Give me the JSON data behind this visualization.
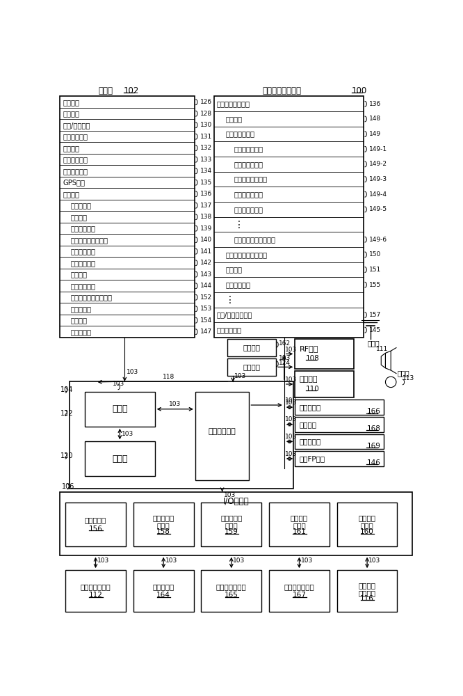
{
  "bg_color": "#ffffff",
  "title_left": "存储器",
  "title_left_ref": "102",
  "title_right": "便携式多功能设备",
  "title_right_ref": "100",
  "left_items": [
    [
      "操作系统",
      "126",
      0
    ],
    [
      "通信模块",
      "128",
      0
    ],
    [
      "接触/运动模块",
      "130",
      0
    ],
    [
      "指纹分析模块",
      "131",
      0
    ],
    [
      "图形模块",
      "132",
      0
    ],
    [
      "触觉反馈模块",
      "133",
      0
    ],
    [
      "文本输入模块",
      "134",
      0
    ],
    [
      "GPS模块",
      "135",
      0
    ],
    [
      "应用程序",
      "136",
      0
    ],
    [
      "联系人模块",
      "137",
      1
    ],
    [
      "电话模块",
      "138",
      1
    ],
    [
      "视频会议模块",
      "139",
      1
    ],
    [
      "电子邮件客户端模块",
      "140",
      1
    ],
    [
      "即时消息模块",
      "141",
      1
    ],
    [
      "健身支持模块",
      "142",
      1
    ],
    [
      "相机模块",
      "143",
      1
    ],
    [
      "图像管理模块",
      "144",
      1
    ],
    [
      "视频和音乐播放器模块",
      "152",
      1
    ],
    [
      "记事本模块",
      "153",
      1
    ],
    [
      "地图模块",
      "154",
      1
    ],
    [
      "浏览器模块",
      "147",
      1
    ]
  ],
  "right_items": [
    [
      "应用程序（续前）",
      "136",
      0,
      false
    ],
    [
      "日历模块",
      "148",
      1,
      false
    ],
    [
      "桌面小程序模块",
      "149",
      1,
      false
    ],
    [
      "天气桌面小程序",
      "149-1",
      2,
      false
    ],
    [
      "股市桌面小程序",
      "149-2",
      2,
      false
    ],
    [
      "计算器桌面小程序",
      "149-3",
      2,
      false
    ],
    [
      "闹钟桌面小程序",
      "149-4",
      2,
      false
    ],
    [
      "词典桌面小程序",
      "149-5",
      2,
      false
    ],
    [
      "",
      "",
      2,
      true
    ],
    [
      "用户创建的桌面小程序",
      "149-6",
      2,
      false
    ],
    [
      "桌面小程序创建器模块",
      "150",
      1,
      false
    ],
    [
      "搜索模块",
      "151",
      1,
      false
    ],
    [
      "在线视频模块",
      "155",
      1,
      false
    ],
    [
      "",
      "",
      1,
      true
    ],
    [
      "设备/全局内部状态",
      "157",
      0,
      false
    ],
    [
      "安全凭据信息",
      "145",
      0,
      false
    ]
  ],
  "io_controllers": [
    [
      "显示控制器",
      "156"
    ],
    [
      "光学传感器\n控制器",
      "158"
    ],
    [
      "强度传感器\n控制器",
      "159"
    ],
    [
      "触觉反馈\n控制器",
      "161"
    ],
    [
      "其他输入\n控制器",
      "160"
    ]
  ],
  "io_devices": [
    [
      "触敏显示器系统",
      "112"
    ],
    [
      "光学传感器",
      "164"
    ],
    [
      "接触强度传感器",
      "165"
    ],
    [
      "触觉输出发生器",
      "167"
    ],
    [
      "其他输入\n控制设备",
      "116"
    ]
  ]
}
